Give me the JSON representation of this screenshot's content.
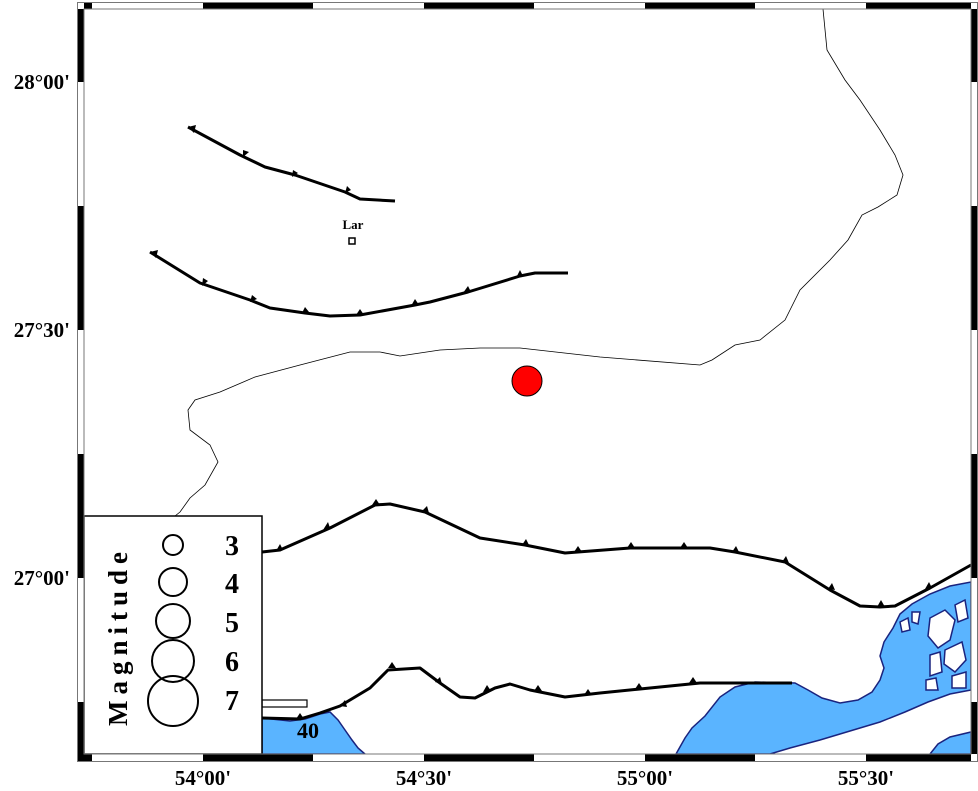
{
  "map": {
    "x_axis_labels": [
      "54°00'",
      "54°30'",
      "55°00'",
      "55°30'"
    ],
    "y_axis_labels": [
      "28°00'",
      "27°30'",
      "27°00'"
    ],
    "city": {
      "name": "Lar"
    },
    "scale_bar_label": "40",
    "event": {
      "color": "#ff0000",
      "count": 1
    },
    "water_color": "#5ab4ff",
    "coast_color": "#1a237e"
  },
  "legend": {
    "title": "Magnitude",
    "entries": [
      "3",
      "4",
      "5",
      "6",
      "7"
    ]
  }
}
